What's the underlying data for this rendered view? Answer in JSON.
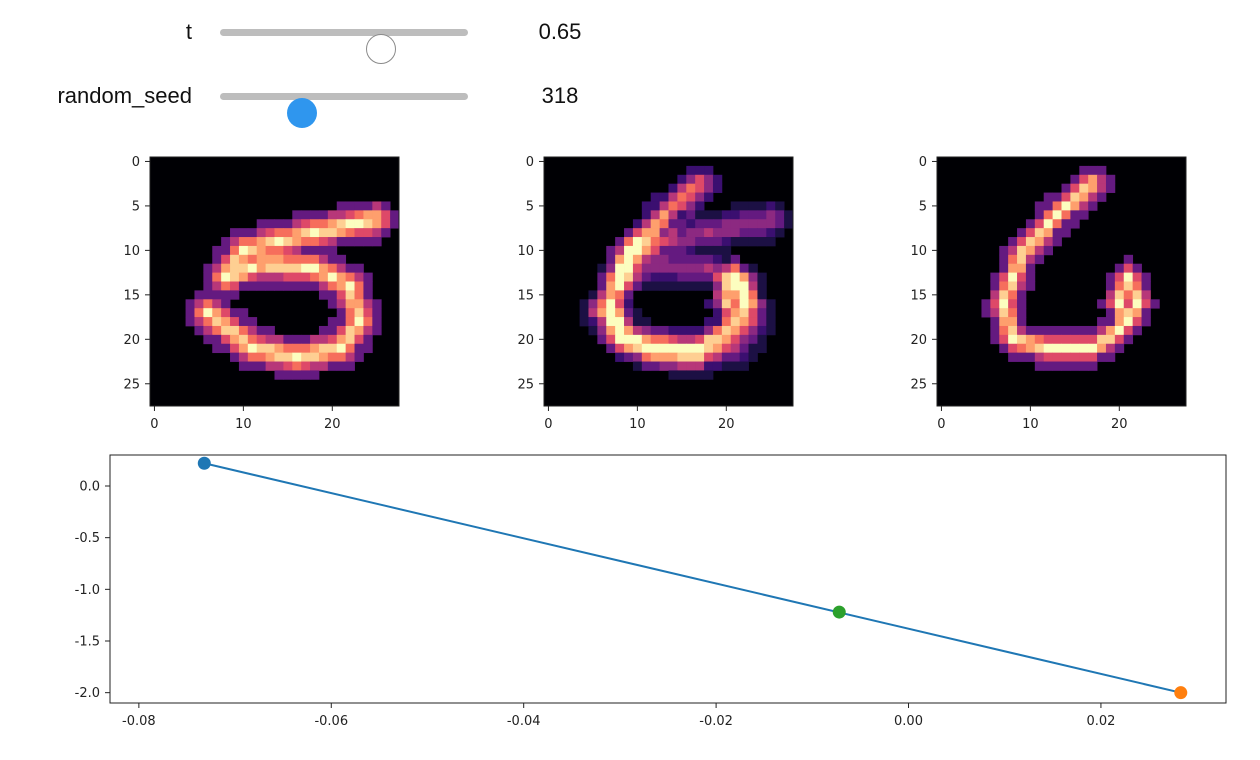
{
  "widgets": {
    "t": {
      "label": "t",
      "value": "0.65",
      "fraction": 0.65
    },
    "random_seed": {
      "label": "random_seed",
      "value": "318",
      "fraction": 0.33
    }
  },
  "images": {
    "x_ticks": [
      "0",
      "10",
      "20"
    ],
    "y_ticks": [
      "0",
      "5",
      "10",
      "15",
      "20",
      "25"
    ],
    "colormap": "magma",
    "panels": [
      "digit-5",
      "blend-5-6",
      "digit-6"
    ]
  },
  "chart_data": {
    "type": "line",
    "title": "",
    "xlabel": "",
    "ylabel": "",
    "xlim": [
      -0.083,
      0.033
    ],
    "ylim": [
      -2.1,
      0.3
    ],
    "x_ticks": [
      "-0.08",
      "-0.06",
      "-0.04",
      "-0.02",
      "0.00",
      "0.02"
    ],
    "x_tick_values": [
      -0.08,
      -0.06,
      -0.04,
      -0.02,
      0.0,
      0.02
    ],
    "y_ticks": [
      "0.0",
      "-0.5",
      "-1.0",
      "-1.5",
      "-2.0"
    ],
    "y_tick_values": [
      0.0,
      -0.5,
      -1.0,
      -1.5,
      -2.0
    ],
    "line": {
      "x": [
        -0.0732,
        0.0283
      ],
      "y": [
        0.22,
        -2.0
      ],
      "color": "#1f77b4"
    },
    "points": [
      {
        "x": -0.0732,
        "y": 0.22,
        "color": "#1f77b4"
      },
      {
        "x": 0.0283,
        "y": -2.0,
        "color": "#ff7f0e"
      },
      {
        "x": -0.0072,
        "y": -1.22,
        "color": "#2ca02c"
      }
    ],
    "grid": false,
    "legend": "none"
  }
}
